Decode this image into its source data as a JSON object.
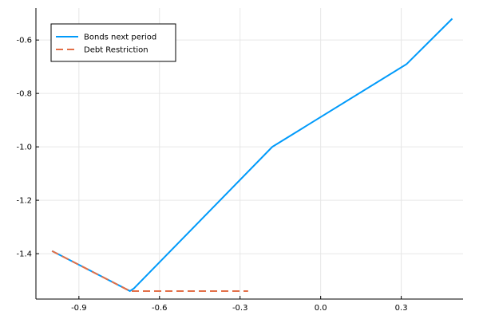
{
  "chart_data": {
    "type": "line",
    "title": "",
    "xlabel": "",
    "ylabel": "",
    "xlim": [
      -1.06,
      0.53
    ],
    "ylim": [
      -1.57,
      -0.48
    ],
    "x_ticks": [
      -0.9,
      -0.6,
      -0.3,
      0.0,
      0.3
    ],
    "x_tick_labels": [
      "-0.9",
      "-0.6",
      "-0.3",
      "0.0",
      "0.3"
    ],
    "y_ticks": [
      -1.4,
      -1.2,
      -1.0,
      -0.8,
      -0.6
    ],
    "y_tick_labels": [
      "-1.4",
      "-1.2",
      "-1.0",
      "-0.8",
      "-0.6"
    ],
    "grid": true,
    "legend_position": "top-left",
    "series": [
      {
        "name": "Bonds next period",
        "color": "#009AFA",
        "dash": "solid",
        "x": [
          -1.0,
          -0.71,
          -0.695,
          -0.18,
          0.32,
          0.49
        ],
        "y": [
          -1.39,
          -1.54,
          -1.53,
          -1.0,
          -0.69,
          -0.52
        ]
      },
      {
        "name": "Debt Restriction",
        "color": "#E36F47",
        "dash": "dashed",
        "x": [
          -1.0,
          -0.71,
          -0.27
        ],
        "y": [
          -1.39,
          -1.54,
          -1.54
        ]
      }
    ]
  }
}
